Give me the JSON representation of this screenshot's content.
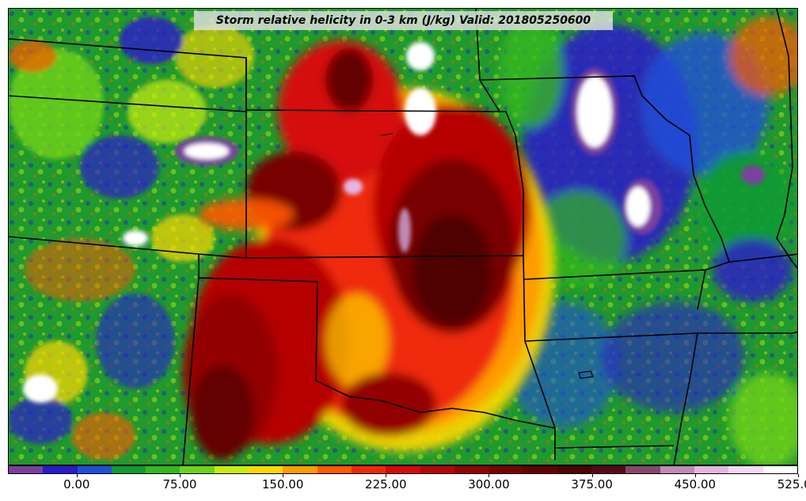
{
  "title": "Storm relative helicity in 0-3 km (J/kg) Valid: 201805250600",
  "colorbar": {
    "colors": [
      "#7b3fa0",
      "#2a1acb",
      "#1f4fd8",
      "#119a34",
      "#33b81f",
      "#6fd21a",
      "#c9ec0b",
      "#ffd800",
      "#ff9c00",
      "#ff5a00",
      "#ef2a07",
      "#d60a0a",
      "#b60606",
      "#930303",
      "#780202",
      "#640101",
      "#4f0000",
      "#5a0a14",
      "#86486a",
      "#c08ab4",
      "#e6b6e2",
      "#f7d8f4",
      "#ffffff"
    ],
    "tick_labels": [
      "0.00",
      "75.00",
      "150.00",
      "225.00",
      "300.00",
      "375.00",
      "450.00",
      "525.00"
    ],
    "tick_values": [
      0,
      75,
      150,
      225,
      300,
      375,
      450,
      525
    ],
    "min": -50,
    "max": 525
  },
  "legend_units": "J/kg"
}
